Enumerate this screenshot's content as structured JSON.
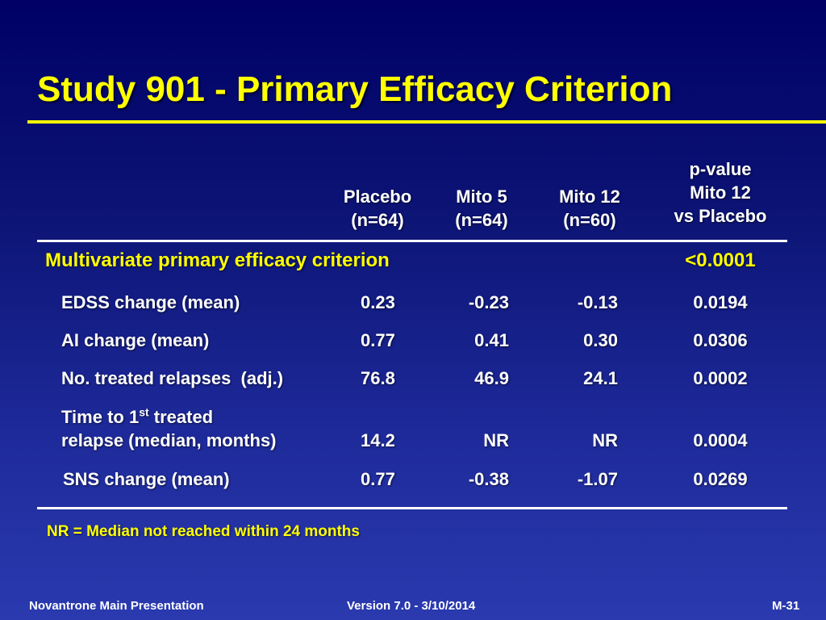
{
  "slide": {
    "title": "Study 901 - Primary Efficacy Criterion"
  },
  "table": {
    "headers": {
      "placebo": [
        "Placebo",
        "(n=64)"
      ],
      "mito5": [
        "Mito 5",
        "(n=64)"
      ],
      "mito12": [
        "Mito 12",
        "(n=60)"
      ],
      "pvalue": [
        "p-value",
        "Mito 12",
        "vs Placebo"
      ]
    },
    "primary": {
      "label": "Multivariate primary efficacy criterion",
      "p_symbol": "<",
      "p_value": "0.0001"
    },
    "rows": [
      {
        "label": "EDSS change (mean)",
        "placebo": "0.23",
        "mito5": "-0.23",
        "mito12": "-0.13",
        "p": "0.0194"
      },
      {
        "label": "AI change (mean)",
        "placebo": "0.77",
        "mito5": "0.41",
        "mito12": "0.30",
        "p": "0.0306"
      },
      {
        "label": "No. treated relapses  (adj.)",
        "placebo": "76.8",
        "mito5": "46.9",
        "mito12": "24.1",
        "p": "0.0002"
      },
      {
        "label_line1_pre": "Time to 1",
        "label_line1_sup": "st",
        "label_line1_post": " treated",
        "label_line2": "relapse (median, months)",
        "placebo": "14.2",
        "mito5": "NR",
        "mito12": "NR",
        "p": "0.0004"
      },
      {
        "label": "SNS change (mean)",
        "placebo": "0.77",
        "mito5": "-0.38",
        "mito12": "-1.07",
        "p": "0.0269"
      }
    ]
  },
  "footnote": "NR = Median not reached within 24 months",
  "footer": {
    "left": "Novantrone Main Presentation",
    "center": "Version 7.0 - 3/10/2014",
    "right": "M-31"
  }
}
